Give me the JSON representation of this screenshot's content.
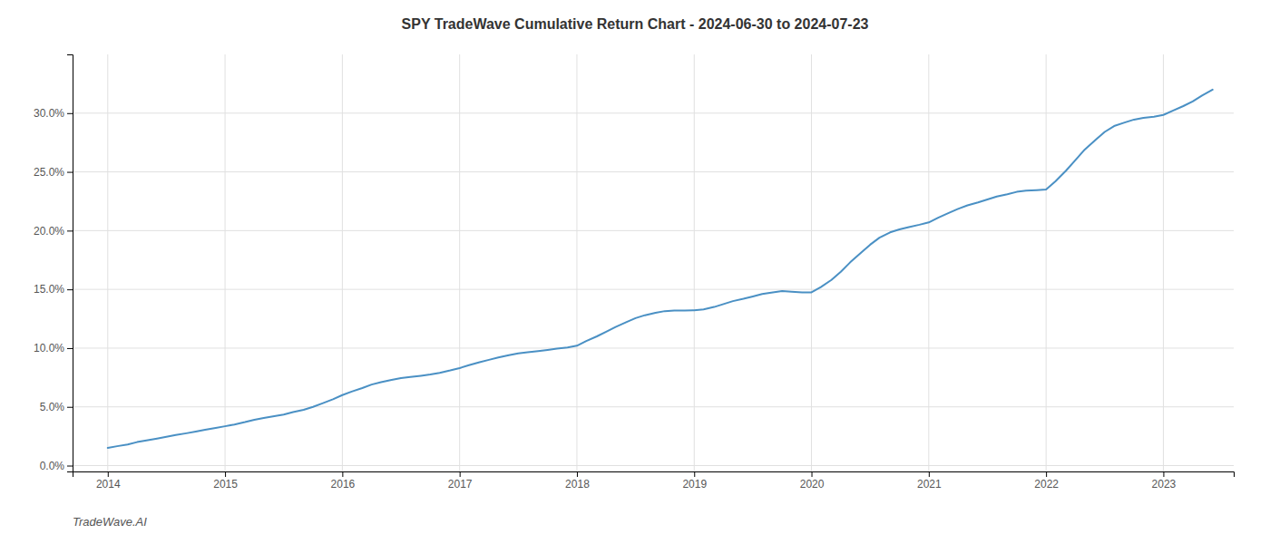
{
  "chart_data": {
    "type": "line",
    "title": "SPY TradeWave Cumulative Return Chart - 2024-06-30 to 2024-07-23",
    "annotations": [
      "TradeWave.AI"
    ],
    "color": "#4a90c4",
    "grid": true,
    "x": [
      2014.0,
      2014.08,
      2014.17,
      2014.25,
      2014.33,
      2014.42,
      2014.5,
      2014.58,
      2014.67,
      2014.75,
      2014.83,
      2014.92,
      2015.0,
      2015.08,
      2015.17,
      2015.25,
      2015.33,
      2015.42,
      2015.5,
      2015.58,
      2015.67,
      2015.75,
      2015.83,
      2015.92,
      2016.0,
      2016.08,
      2016.17,
      2016.25,
      2016.33,
      2016.42,
      2016.5,
      2016.58,
      2016.67,
      2016.75,
      2016.83,
      2016.92,
      2017.0,
      2017.08,
      2017.17,
      2017.25,
      2017.33,
      2017.42,
      2017.5,
      2017.58,
      2017.67,
      2017.75,
      2017.83,
      2017.92,
      2018.0,
      2018.08,
      2018.17,
      2018.25,
      2018.33,
      2018.42,
      2018.5,
      2018.58,
      2018.67,
      2018.75,
      2018.83,
      2018.92,
      2019.0,
      2019.08,
      2019.17,
      2019.25,
      2019.33,
      2019.42,
      2019.5,
      2019.58,
      2019.67,
      2019.75,
      2019.83,
      2019.92,
      2020.0,
      2020.08,
      2020.17,
      2020.25,
      2020.33,
      2020.42,
      2020.5,
      2020.58,
      2020.67,
      2020.75,
      2020.83,
      2020.92,
      2021.0,
      2021.08,
      2021.17,
      2021.25,
      2021.33,
      2021.42,
      2021.5,
      2021.58,
      2021.67,
      2021.75,
      2021.83,
      2021.92,
      2022.0,
      2022.08,
      2022.17,
      2022.25,
      2022.33,
      2022.42,
      2022.5,
      2022.58,
      2022.67,
      2022.75,
      2022.83,
      2022.92,
      2023.0,
      2023.08,
      2023.17,
      2023.25,
      2023.33,
      2023.42
    ],
    "values": [
      1.5,
      1.65,
      1.8,
      2.0,
      2.15,
      2.3,
      2.45,
      2.6,
      2.75,
      2.9,
      3.05,
      3.2,
      3.35,
      3.5,
      3.7,
      3.9,
      4.05,
      4.2,
      4.35,
      4.55,
      4.75,
      5.0,
      5.3,
      5.65,
      6.0,
      6.3,
      6.6,
      6.9,
      7.1,
      7.3,
      7.45,
      7.55,
      7.65,
      7.75,
      7.9,
      8.1,
      8.3,
      8.55,
      8.8,
      9.0,
      9.2,
      9.4,
      9.55,
      9.65,
      9.75,
      9.85,
      9.95,
      10.05,
      10.2,
      10.6,
      11.0,
      11.4,
      11.8,
      12.2,
      12.55,
      12.8,
      13.0,
      13.15,
      13.2,
      13.2,
      13.22,
      13.3,
      13.5,
      13.75,
      14.0,
      14.2,
      14.4,
      14.6,
      14.75,
      14.85,
      14.8,
      14.75,
      14.75,
      15.2,
      15.8,
      16.5,
      17.3,
      18.1,
      18.8,
      19.4,
      19.85,
      20.1,
      20.3,
      20.5,
      20.7,
      21.1,
      21.5,
      21.85,
      22.15,
      22.4,
      22.65,
      22.9,
      23.1,
      23.3,
      23.4,
      23.45,
      23.5,
      24.2,
      25.1,
      26.0,
      26.9,
      27.7,
      28.4,
      28.9,
      29.2,
      29.45,
      29.6,
      29.7,
      29.85,
      30.2,
      30.6,
      31.0,
      31.5,
      32.0
    ],
    "xlim": [
      2013.7,
      2023.6
    ],
    "xticks": [
      2014,
      2015,
      2016,
      2017,
      2018,
      2019,
      2020,
      2021,
      2022,
      2023
    ],
    "ylim": [
      -0.5,
      35.0
    ],
    "yticks": [
      {
        "value": 0.0,
        "label": "0.0%"
      },
      {
        "value": 5.0,
        "label": "5.0%"
      },
      {
        "value": 10.0,
        "label": "10.0%"
      },
      {
        "value": 15.0,
        "label": "15.0%"
      },
      {
        "value": 20.0,
        "label": "20.0%"
      },
      {
        "value": 25.0,
        "label": "25.0%"
      },
      {
        "value": 30.0,
        "label": "30.0%"
      }
    ]
  }
}
